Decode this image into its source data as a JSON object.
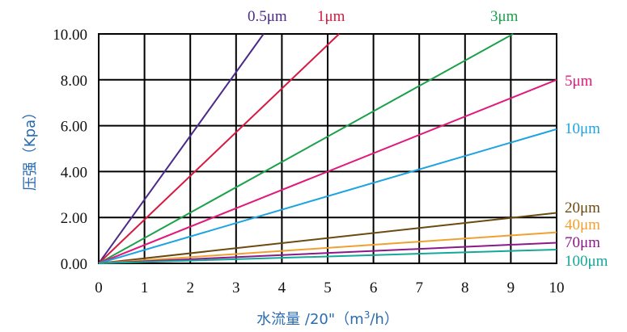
{
  "chart_data": {
    "type": "line",
    "xlabel_main": "水流量 /20\"（m",
    "xlabel_sup": "3",
    "xlabel_tail": "/h）",
    "ylabel": "压强（Kpa）",
    "xlim": [
      0,
      10
    ],
    "ylim": [
      0,
      10
    ],
    "x_ticks": [
      "0",
      "1",
      "2",
      "3",
      "4",
      "5",
      "6",
      "7",
      "8",
      "9",
      "10"
    ],
    "y_ticks": [
      "0.00",
      "2.00",
      "4.00",
      "6.00",
      "8.00",
      "10.00"
    ],
    "grid": true,
    "series": [
      {
        "name": "0.5μm",
        "x": [
          0,
          3.6
        ],
        "y": [
          0,
          10
        ],
        "color": "#4b2a8a"
      },
      {
        "name": "1μm",
        "x": [
          0,
          5.25
        ],
        "y": [
          0,
          10
        ],
        "color": "#d6193f"
      },
      {
        "name": "3μm",
        "x": [
          0,
          9.05
        ],
        "y": [
          0,
          10
        ],
        "color": "#1aa14a"
      },
      {
        "name": "5μm",
        "x": [
          0,
          10
        ],
        "y": [
          0,
          8.0
        ],
        "color": "#e0197a"
      },
      {
        "name": "10μm",
        "x": [
          0,
          10
        ],
        "y": [
          0,
          5.85
        ],
        "color": "#1ea3e0"
      },
      {
        "name": "20μm",
        "x": [
          0,
          10
        ],
        "y": [
          0,
          2.2
        ],
        "color": "#6b4a10"
      },
      {
        "name": "40μm",
        "x": [
          0,
          10
        ],
        "y": [
          0,
          1.35
        ],
        "color": "#f0a030"
      },
      {
        "name": "70μm",
        "x": [
          0,
          10
        ],
        "y": [
          0,
          0.9
        ],
        "color": "#8a1a8a"
      },
      {
        "name": "100μm",
        "x": [
          0,
          10
        ],
        "y": [
          0,
          0.6
        ],
        "color": "#14a898"
      }
    ]
  }
}
